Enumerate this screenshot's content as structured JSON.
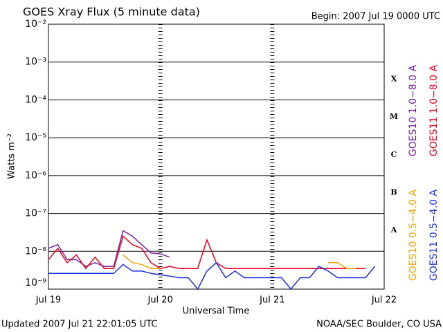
{
  "chart_data": {
    "type": "line",
    "title": "GOES Xray Flux (5 minute data)",
    "subtitle": "Begin:  2007 Jul 19 0000 UTC",
    "xlabel": "Universal Time",
    "ylabel": "Watts m⁻²",
    "footer_left": "Updated 2007 Jul 21 22:01:05 UTC",
    "footer_right": "NOAA/SEC Boulder, CO USA",
    "flare_classes": [
      "X",
      "M",
      "C",
      "B",
      "A"
    ],
    "yscale": "log",
    "grid": true,
    "xlim": [
      0,
      72
    ],
    "xticks": [
      {
        "value": 0,
        "label": "Jul 19"
      },
      {
        "value": 24,
        "label": "Jul 20"
      },
      {
        "value": 48,
        "label": "Jul 21"
      },
      {
        "value": 72,
        "label": "Jul 22"
      }
    ],
    "ylim": [
      1e-09,
      0.01
    ],
    "yticks": [
      {
        "value": 0.01,
        "label": "10⁻²"
      },
      {
        "value": 0.001,
        "label": "10⁻³"
      },
      {
        "value": 0.0001,
        "label": "10⁻⁴"
      },
      {
        "value": 1e-05,
        "label": "10⁻⁵"
      },
      {
        "value": 1e-06,
        "label": "10⁻⁶"
      },
      {
        "value": 1e-07,
        "label": "10⁻⁷"
      },
      {
        "value": 1e-08,
        "label": "10⁻⁸"
      },
      {
        "value": 1e-09,
        "label": "10⁻⁹"
      }
    ],
    "x": [
      0,
      2,
      4,
      6,
      8,
      10,
      12,
      14,
      16,
      18,
      20,
      22,
      24,
      26,
      28,
      30,
      32,
      34,
      36,
      38,
      40,
      42,
      44,
      46,
      48,
      50,
      52,
      54,
      56,
      58,
      60,
      62,
      64,
      66,
      68,
      70,
      72
    ],
    "series": [
      {
        "name": "GOES10 1.0−8.0 A",
        "color": "#7a1fa2",
        "values": [
          1.2e-08,
          1.5e-08,
          6e-09,
          6e-09,
          4e-09,
          5e-09,
          4e-09,
          4e-09,
          3.5e-08,
          2.5e-08,
          1.5e-08,
          9e-09,
          8.5e-09,
          7e-09,
          null,
          null,
          null,
          null,
          null,
          null,
          null,
          null,
          null,
          null,
          null,
          null,
          null,
          null,
          null,
          null,
          null,
          null,
          null,
          null,
          null,
          null,
          null
        ]
      },
      {
        "name": "GOES11 1.0−8.0 A",
        "color": "#e8001c",
        "values": [
          6e-09,
          1.2e-08,
          5e-09,
          8e-09,
          3.5e-09,
          7e-09,
          3.5e-09,
          3.5e-09,
          2.5e-08,
          1.5e-08,
          1.2e-08,
          5e-09,
          3.5e-09,
          4e-09,
          3.5e-09,
          3.5e-09,
          3.5e-09,
          2e-08,
          5e-09,
          3.5e-09,
          3.5e-09,
          3.5e-09,
          3.5e-09,
          3.5e-09,
          3.5e-09,
          3.5e-09,
          3.5e-09,
          3.5e-09,
          3.5e-09,
          3.5e-09,
          3.5e-09,
          3.5e-09,
          3.5e-09,
          3.5e-09,
          3.5e-09,
          null,
          null
        ]
      },
      {
        "name": "GOES10 0.5−4.0 A",
        "color": "#f5a000",
        "values": [
          null,
          null,
          null,
          null,
          null,
          null,
          null,
          null,
          8e-09,
          5e-09,
          4.5e-09,
          3.5e-09,
          3.5e-09,
          null,
          null,
          null,
          null,
          null,
          null,
          null,
          null,
          null,
          null,
          null,
          null,
          null,
          null,
          null,
          null,
          null,
          5e-09,
          5e-09,
          3.5e-09,
          3.5e-09,
          null,
          null,
          null
        ]
      },
      {
        "name": "GOES11 0.5−4.0 A",
        "color": "#1a2ee0",
        "values": [
          2.6e-09,
          2.6e-09,
          2.6e-09,
          2.6e-09,
          2.6e-09,
          2.6e-09,
          2.6e-09,
          2.6e-09,
          4.5e-09,
          3e-09,
          3e-09,
          2.6e-09,
          2.4e-09,
          2.2e-09,
          2e-09,
          2e-09,
          1e-09,
          3e-09,
          5e-09,
          2e-09,
          3e-09,
          2e-09,
          2e-09,
          2e-09,
          2e-09,
          2e-09,
          1e-09,
          2e-09,
          2e-09,
          4e-09,
          3e-09,
          2e-09,
          2e-09,
          2e-09,
          2e-09,
          4e-09,
          null
        ]
      }
    ]
  }
}
